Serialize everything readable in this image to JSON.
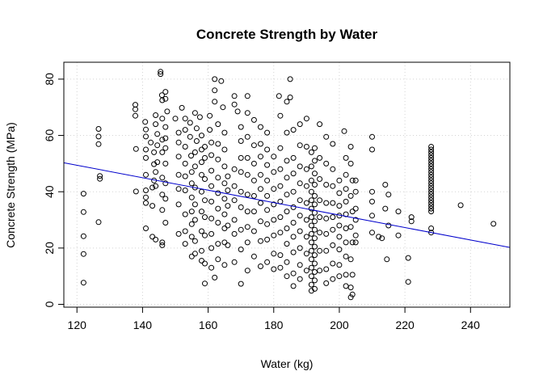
{
  "chart_data": {
    "type": "scatter",
    "title": "Concrete Strength by Water",
    "xlabel": "Water (kg)",
    "ylabel": "Concrete Strength (MPa)",
    "xlim": [
      116,
      252
    ],
    "ylim": [
      -1,
      86
    ],
    "x_ticks": [
      120,
      140,
      160,
      180,
      200,
      220,
      240
    ],
    "y_ticks": [
      0,
      20,
      40,
      60,
      80
    ],
    "grid": true,
    "colors": {
      "points": "#000000",
      "trend": "#0000cc",
      "grid": "#d3d3d3",
      "frame": "#000000"
    },
    "trend_line": {
      "x": [
        116,
        252
      ],
      "y": [
        50.3,
        20.2
      ]
    },
    "points": [
      [
        122,
        39.3
      ],
      [
        122,
        32.8
      ],
      [
        122,
        24.2
      ],
      [
        122,
        17.9
      ],
      [
        122,
        7.7
      ],
      [
        126.6,
        62.3
      ],
      [
        126.6,
        59.6
      ],
      [
        126.6,
        56.9
      ],
      [
        127,
        45.6
      ],
      [
        127,
        44.6
      ],
      [
        126.6,
        29.2
      ],
      [
        137.8,
        70.9
      ],
      [
        137.8,
        69.3
      ],
      [
        137.8,
        67.0
      ],
      [
        138,
        55.2
      ],
      [
        138,
        40.1
      ],
      [
        140.8,
        64.8
      ],
      [
        141,
        62.1
      ],
      [
        141,
        59.6
      ],
      [
        141,
        55.0
      ],
      [
        141,
        52.0
      ],
      [
        141,
        46.0
      ],
      [
        141,
        40.5
      ],
      [
        141,
        38.0
      ],
      [
        141,
        36.0
      ],
      [
        141,
        27.0
      ],
      [
        142.5,
        57.5
      ],
      [
        143.5,
        54.0
      ],
      [
        143.5,
        49.8
      ],
      [
        143.5,
        44.0
      ],
      [
        143,
        41.5
      ],
      [
        143,
        35.0
      ],
      [
        143,
        24.0
      ],
      [
        144,
        67.2
      ],
      [
        144,
        64.0
      ],
      [
        144.5,
        60.5
      ],
      [
        144.5,
        56.5
      ],
      [
        144.5,
        50.5
      ],
      [
        144,
        47.0
      ],
      [
        144,
        42.0
      ],
      [
        144,
        23.0
      ],
      [
        145.5,
        82.6
      ],
      [
        145.5,
        81.8
      ],
      [
        145.9,
        74.3
      ],
      [
        146,
        72.5
      ],
      [
        146,
        66.0
      ],
      [
        146,
        58.5
      ],
      [
        146,
        54.0
      ],
      [
        146,
        45.0
      ],
      [
        146,
        39.0
      ],
      [
        146,
        33.5
      ],
      [
        146,
        22.0
      ],
      [
        146,
        21.0
      ],
      [
        147,
        75.5
      ],
      [
        147,
        73.0
      ],
      [
        147.5,
        68.5
      ],
      [
        147,
        63.0
      ],
      [
        147,
        59.0
      ],
      [
        147,
        55.5
      ],
      [
        147,
        50.0
      ],
      [
        147,
        43.0
      ],
      [
        147,
        37.5
      ],
      [
        147,
        29.0
      ],
      [
        150,
        66.0
      ],
      [
        151,
        61.0
      ],
      [
        151,
        57.5
      ],
      [
        151,
        52.5
      ],
      [
        151,
        46.0
      ],
      [
        151,
        41.0
      ],
      [
        151,
        35.5
      ],
      [
        151,
        25.0
      ],
      [
        152,
        69.8
      ],
      [
        153,
        66.0
      ],
      [
        153,
        62.0
      ],
      [
        153,
        56.0
      ],
      [
        153,
        50.0
      ],
      [
        153,
        45.5
      ],
      [
        153,
        40.5
      ],
      [
        153,
        32.0
      ],
      [
        153,
        26.0
      ],
      [
        153,
        21.5
      ],
      [
        154.5,
        64.5
      ],
      [
        154.5,
        59.5
      ],
      [
        154.8,
        52.8
      ],
      [
        155,
        47.0
      ],
      [
        155,
        43.0
      ],
      [
        155,
        38.0
      ],
      [
        155,
        33.0
      ],
      [
        155,
        28.5
      ],
      [
        155,
        24.0
      ],
      [
        155,
        17.0
      ],
      [
        156,
        68.0
      ],
      [
        156.5,
        62.5
      ],
      [
        156.5,
        58.0
      ],
      [
        156,
        54.0
      ],
      [
        156,
        49.0
      ],
      [
        156,
        41.5
      ],
      [
        156,
        35.5
      ],
      [
        156,
        30.0
      ],
      [
        156,
        22.5
      ],
      [
        156,
        18.0
      ],
      [
        157.5,
        66.5
      ],
      [
        158,
        60.0
      ],
      [
        158,
        55.0
      ],
      [
        158,
        50.5
      ],
      [
        158,
        46.0
      ],
      [
        158,
        40.0
      ],
      [
        158,
        33.0
      ],
      [
        158,
        26.0
      ],
      [
        158,
        19.0
      ],
      [
        158,
        15.5
      ],
      [
        159,
        56.0
      ],
      [
        159,
        52.0
      ],
      [
        159,
        44.5
      ],
      [
        159,
        37.0
      ],
      [
        159,
        31.0
      ],
      [
        159,
        24.5
      ],
      [
        159,
        14.5
      ],
      [
        159,
        7.4
      ],
      [
        160.5,
        67.0
      ],
      [
        160.5,
        62.0
      ],
      [
        161,
        57.5
      ],
      [
        161,
        53.0
      ],
      [
        161,
        47.5
      ],
      [
        161,
        42.0
      ],
      [
        161,
        36.5
      ],
      [
        161,
        30.5
      ],
      [
        161,
        25.0
      ],
      [
        161,
        20.0
      ],
      [
        161,
        13.0
      ],
      [
        162,
        80.0
      ],
      [
        162,
        76.0
      ],
      [
        162,
        72.0
      ],
      [
        163,
        64.0
      ],
      [
        163,
        57.0
      ],
      [
        163,
        51.5
      ],
      [
        163,
        45.0
      ],
      [
        163,
        39.5
      ],
      [
        163,
        34.0
      ],
      [
        163,
        29.0
      ],
      [
        163,
        21.5
      ],
      [
        163,
        16.0
      ],
      [
        162,
        9.5
      ],
      [
        164,
        79.3
      ],
      [
        164.5,
        70.0
      ],
      [
        165,
        61.0
      ],
      [
        165,
        55.0
      ],
      [
        165,
        49.0
      ],
      [
        165,
        43.0
      ],
      [
        165,
        37.5
      ],
      [
        165,
        32.0
      ],
      [
        165,
        27.0
      ],
      [
        165,
        22.0
      ],
      [
        165,
        14.0
      ],
      [
        166,
        45.5
      ],
      [
        166,
        40.5
      ],
      [
        166,
        35.0
      ],
      [
        166,
        28.0
      ],
      [
        166,
        21.0
      ],
      [
        168,
        74.0
      ],
      [
        168,
        71.0
      ],
      [
        168,
        48.0
      ],
      [
        168,
        42.0
      ],
      [
        168,
        37.0
      ],
      [
        168,
        30.0
      ],
      [
        168,
        25.0
      ],
      [
        168,
        15.0
      ],
      [
        169,
        68.5
      ],
      [
        170,
        63.0
      ],
      [
        170,
        58.0
      ],
      [
        170,
        52.0
      ],
      [
        170,
        47.0
      ],
      [
        170,
        40.0
      ],
      [
        170,
        34.5
      ],
      [
        170,
        26.5
      ],
      [
        170,
        19.5
      ],
      [
        170,
        7.3
      ],
      [
        172,
        74.0
      ],
      [
        172,
        68.0
      ],
      [
        172,
        59.5
      ],
      [
        172,
        52.0
      ],
      [
        172,
        46.0
      ],
      [
        172,
        39.0
      ],
      [
        172,
        33.0
      ],
      [
        172,
        27.5
      ],
      [
        172,
        22.0
      ],
      [
        172,
        12.0
      ],
      [
        174,
        65.5
      ],
      [
        174,
        56.5
      ],
      [
        174,
        50.0
      ],
      [
        174,
        44.0
      ],
      [
        174,
        38.5
      ],
      [
        174,
        33.0
      ],
      [
        174,
        26.0
      ],
      [
        174,
        17.0
      ],
      [
        176,
        63.0
      ],
      [
        176,
        57.0
      ],
      [
        176,
        52.5
      ],
      [
        176,
        46.0
      ],
      [
        176,
        41.0
      ],
      [
        176,
        36.0
      ],
      [
        176,
        29.5
      ],
      [
        176,
        22.5
      ],
      [
        176,
        13.5
      ],
      [
        178,
        61.0
      ],
      [
        178,
        55.0
      ],
      [
        178,
        49.5
      ],
      [
        178,
        44.0
      ],
      [
        178,
        38.5
      ],
      [
        178,
        33.5
      ],
      [
        178,
        28.5
      ],
      [
        178,
        23.0
      ],
      [
        178,
        15.0
      ],
      [
        180,
        52.5
      ],
      [
        180,
        47.0
      ],
      [
        180,
        41.0
      ],
      [
        180,
        35.5
      ],
      [
        180,
        30.0
      ],
      [
        180,
        24.5
      ],
      [
        180,
        18.0
      ],
      [
        180,
        12.5
      ],
      [
        181.6,
        74.0
      ],
      [
        182,
        67.0
      ],
      [
        182,
        55.5
      ],
      [
        182,
        48.0
      ],
      [
        182,
        42.0
      ],
      [
        182,
        36.5
      ],
      [
        182,
        31.0
      ],
      [
        182,
        25.5
      ],
      [
        182,
        17.5
      ],
      [
        182,
        13.0
      ],
      [
        184,
        72.0
      ],
      [
        184,
        61.0
      ],
      [
        184,
        51.0
      ],
      [
        184,
        45.0
      ],
      [
        184,
        39.0
      ],
      [
        184,
        33.0
      ],
      [
        184,
        27.0
      ],
      [
        184,
        21.5
      ],
      [
        184,
        15.0
      ],
      [
        184,
        10.0
      ],
      [
        185,
        80.0
      ],
      [
        185,
        73.5
      ],
      [
        186,
        62.0
      ],
      [
        186,
        52.0
      ],
      [
        186,
        46.5
      ],
      [
        186,
        40.0
      ],
      [
        186,
        34.5
      ],
      [
        186,
        29.0
      ],
      [
        186,
        24.0
      ],
      [
        186,
        18.5
      ],
      [
        186,
        11.0
      ],
      [
        186,
        6.5
      ],
      [
        188,
        64.0
      ],
      [
        188,
        56.5
      ],
      [
        188,
        49.0
      ],
      [
        188,
        43.0
      ],
      [
        188,
        37.0
      ],
      [
        188,
        31.5
      ],
      [
        188,
        26.0
      ],
      [
        188,
        20.0
      ],
      [
        188,
        14.0
      ],
      [
        188,
        9.0
      ],
      [
        190,
        66.0
      ],
      [
        190,
        56.0
      ],
      [
        190,
        48.0
      ],
      [
        190,
        42.0
      ],
      [
        190,
        36.0
      ],
      [
        190,
        30.0
      ],
      [
        190,
        24.0
      ],
      [
        190,
        18.0
      ],
      [
        190,
        12.0
      ],
      [
        191.5,
        54.0
      ],
      [
        191.5,
        49.0
      ],
      [
        191.5,
        44.0
      ],
      [
        191.5,
        40.0
      ],
      [
        191.5,
        37.0
      ],
      [
        191.5,
        34.0
      ],
      [
        191.5,
        31.0
      ],
      [
        191.5,
        28.0
      ],
      [
        191.5,
        25.0
      ],
      [
        191.5,
        22.0
      ],
      [
        191.5,
        19.0
      ],
      [
        191.5,
        16.0
      ],
      [
        191.5,
        13.0
      ],
      [
        191.5,
        10.0
      ],
      [
        191.5,
        7.0
      ],
      [
        191.5,
        4.8
      ],
      [
        192.5,
        55.5
      ],
      [
        192.5,
        51.0
      ],
      [
        192.5,
        46.5
      ],
      [
        192.5,
        42.5
      ],
      [
        192.5,
        38.5
      ],
      [
        192.5,
        35.5
      ],
      [
        192.5,
        32.5
      ],
      [
        192.5,
        29.5
      ],
      [
        192.5,
        26.5
      ],
      [
        192.5,
        23.5
      ],
      [
        192.5,
        20.5
      ],
      [
        192.5,
        17.5
      ],
      [
        192.5,
        14.5
      ],
      [
        192.5,
        11.5
      ],
      [
        192.5,
        8.5
      ],
      [
        192.5,
        5.5
      ],
      [
        194,
        64.0
      ],
      [
        194,
        52.0
      ],
      [
        194,
        44.5
      ],
      [
        194,
        37.0
      ],
      [
        194,
        31.0
      ],
      [
        194,
        25.5
      ],
      [
        194,
        19.0
      ],
      [
        194,
        12.0
      ],
      [
        196,
        59.5
      ],
      [
        196,
        50.0
      ],
      [
        196,
        42.5
      ],
      [
        196,
        36.0
      ],
      [
        196,
        30.5
      ],
      [
        196,
        25.0
      ],
      [
        196,
        19.0
      ],
      [
        196,
        12.5
      ],
      [
        196,
        7.5
      ],
      [
        198,
        57.0
      ],
      [
        198,
        48.0
      ],
      [
        198,
        42.0
      ],
      [
        198,
        36.0
      ],
      [
        198,
        31.0
      ],
      [
        198,
        26.5
      ],
      [
        198,
        21.0
      ],
      [
        198,
        14.5
      ],
      [
        198,
        9.0
      ],
      [
        200,
        44.0
      ],
      [
        200,
        39.5
      ],
      [
        200,
        35.0
      ],
      [
        200,
        31.5
      ],
      [
        200,
        28.0
      ],
      [
        200,
        24.0
      ],
      [
        200,
        19.5
      ],
      [
        200,
        14.0
      ],
      [
        200,
        10.0
      ],
      [
        201.5,
        61.5
      ],
      [
        202,
        52.0
      ],
      [
        202,
        46.0
      ],
      [
        202,
        41.0
      ],
      [
        202,
        36.5
      ],
      [
        202,
        32.0
      ],
      [
        202,
        27.0
      ],
      [
        202,
        22.0
      ],
      [
        202,
        17.0
      ],
      [
        202,
        10.5
      ],
      [
        202,
        6.5
      ],
      [
        203.5,
        56.0
      ],
      [
        203.5,
        50.0
      ],
      [
        204,
        44.0
      ],
      [
        203.5,
        38.5
      ],
      [
        204,
        33.0
      ],
      [
        203.5,
        27.5
      ],
      [
        204,
        22.0
      ],
      [
        203.5,
        16.0
      ],
      [
        204,
        10.5
      ],
      [
        203.5,
        6.0
      ],
      [
        204,
        3.5
      ],
      [
        203.5,
        2.5
      ],
      [
        205,
        44.0
      ],
      [
        205,
        40.0
      ],
      [
        205,
        34.0
      ],
      [
        205,
        30.0
      ],
      [
        205,
        24.5
      ],
      [
        205,
        22.0
      ],
      [
        210,
        59.5
      ],
      [
        210,
        55.0
      ],
      [
        210,
        40.0
      ],
      [
        210,
        36.5
      ],
      [
        210,
        31.5
      ],
      [
        210,
        25.5
      ],
      [
        212,
        24.0
      ],
      [
        213,
        23.5
      ],
      [
        214,
        42.5
      ],
      [
        214,
        34.0
      ],
      [
        214.5,
        16.0
      ],
      [
        215,
        39.0
      ],
      [
        215,
        28.0
      ],
      [
        218,
        33.0
      ],
      [
        218,
        24.5
      ],
      [
        221,
        16.5
      ],
      [
        221,
        8.0
      ],
      [
        222,
        31.0
      ],
      [
        222,
        29.5
      ],
      [
        228,
        56.0
      ],
      [
        228,
        55.0
      ],
      [
        228,
        54.0
      ],
      [
        228,
        53.0
      ],
      [
        228,
        52.0
      ],
      [
        228,
        51.0
      ],
      [
        228,
        50.0
      ],
      [
        228,
        49.0
      ],
      [
        228,
        48.0
      ],
      [
        228,
        47.0
      ],
      [
        228,
        46.0
      ],
      [
        228,
        45.0
      ],
      [
        228,
        44.0
      ],
      [
        228,
        43.0
      ],
      [
        228,
        42.0
      ],
      [
        228,
        41.0
      ],
      [
        228,
        40.0
      ],
      [
        228,
        39.0
      ],
      [
        228,
        38.0
      ],
      [
        228,
        37.0
      ],
      [
        228,
        36.0
      ],
      [
        228,
        35.0
      ],
      [
        228,
        34.0
      ],
      [
        228,
        33.0
      ],
      [
        228,
        27.0
      ],
      [
        228,
        25.5
      ],
      [
        237,
        35.2
      ],
      [
        247,
        28.6
      ]
    ]
  }
}
